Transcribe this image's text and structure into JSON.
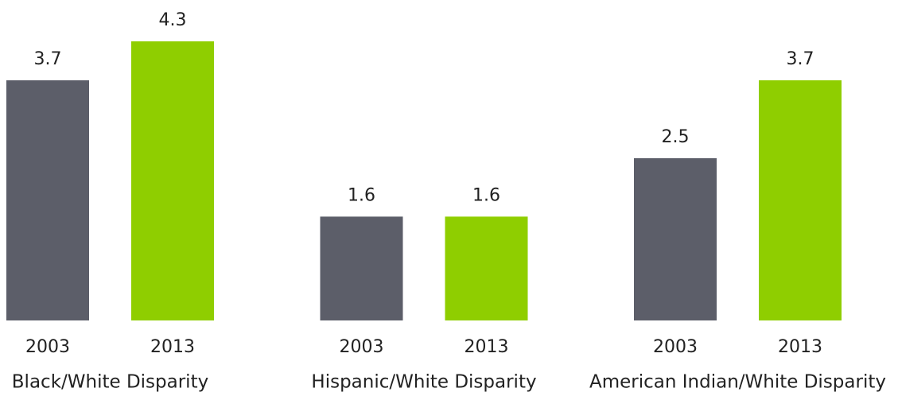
{
  "chart_data": {
    "type": "bar",
    "categories": [
      "Black/White Disparity",
      "Hispanic/White Disparity",
      "American Indian/White Disparity"
    ],
    "series": [
      {
        "name": "2003",
        "color": "#5c5e69",
        "values": [
          3.7,
          1.6,
          2.5
        ]
      },
      {
        "name": "2013",
        "color": "#8fce00",
        "values": [
          4.3,
          1.6,
          3.7
        ]
      }
    ]
  }
}
